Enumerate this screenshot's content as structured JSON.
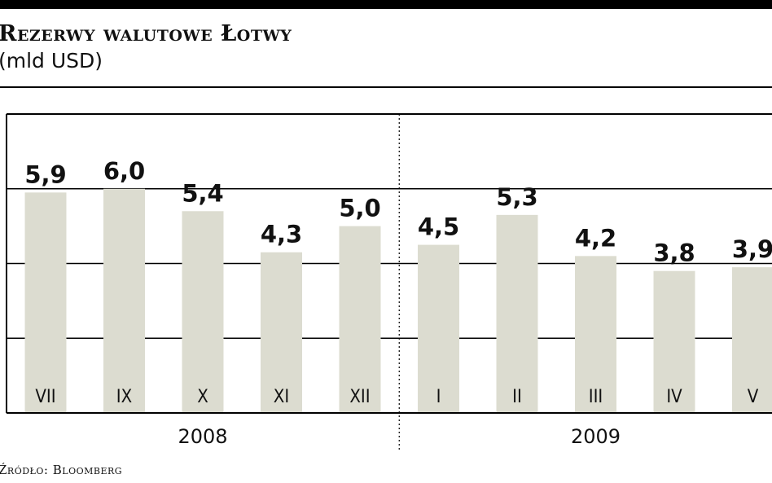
{
  "header": {
    "title": "Rezerwy walutowe Łotwy",
    "subtitle": "(mld USD)"
  },
  "footer": {
    "source": "Źródło: Bloomberg"
  },
  "colors": {
    "bar": "#dcdcd0",
    "frame": "#000000",
    "grid": "#000000",
    "text": "#111111"
  },
  "chart_data": {
    "type": "bar",
    "title": "Rezerwy walutowe Łotwy",
    "subtitle": "(mld USD)",
    "xlabel": "",
    "ylabel": "",
    "ylim": [
      0,
      8
    ],
    "grid": true,
    "gridlines": [
      2,
      4,
      6
    ],
    "categories": [
      "VII",
      "IX",
      "X",
      "XI",
      "XII",
      "I",
      "II",
      "III",
      "IV",
      "V"
    ],
    "values": [
      5.9,
      6.0,
      5.4,
      4.3,
      5.0,
      4.5,
      5.3,
      4.2,
      3.8,
      3.9
    ],
    "value_labels": [
      "5,9",
      "6,0",
      "5,4",
      "4,3",
      "5,0",
      "4,5",
      "5,3",
      "4,2",
      "3,8",
      "3,9"
    ],
    "groups": [
      {
        "label": "2008",
        "start": 0,
        "end": 4
      },
      {
        "label": "2009",
        "start": 5,
        "end": 9
      }
    ],
    "source": "Źródło: Bloomberg"
  }
}
